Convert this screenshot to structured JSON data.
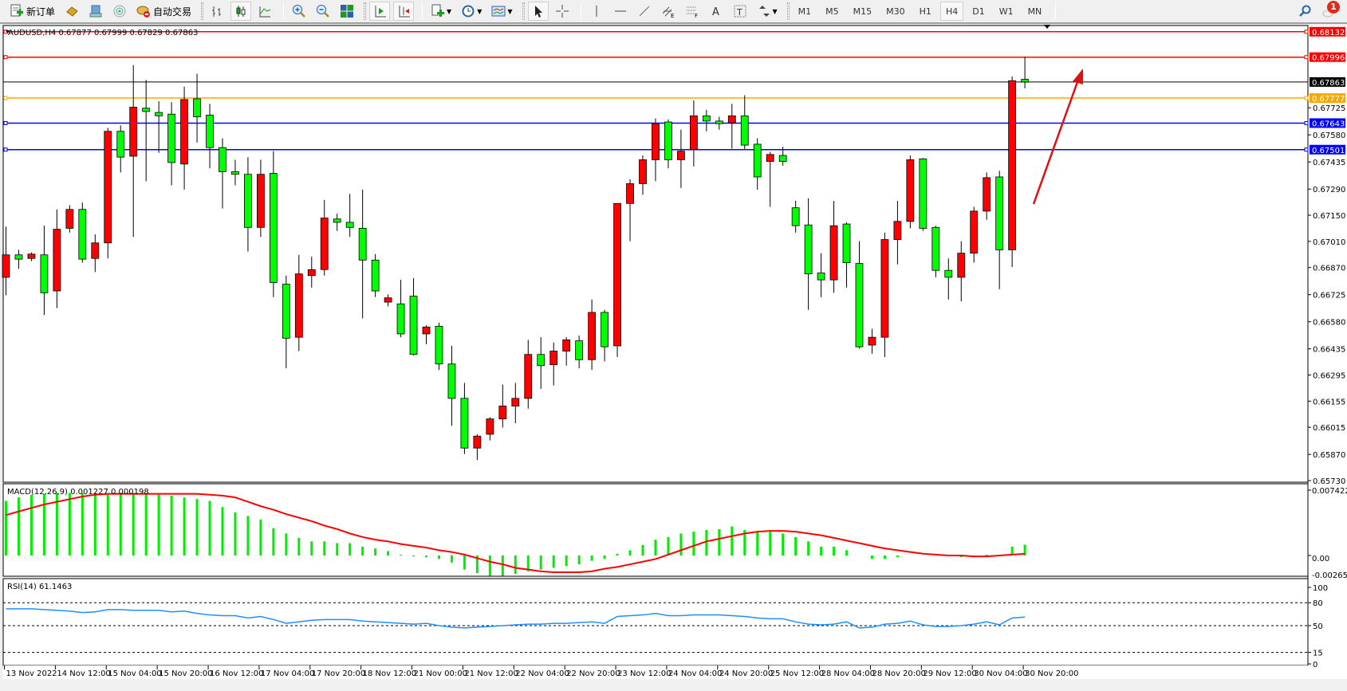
{
  "toolbar": {
    "new_order": "新订单",
    "auto_trading": "自动交易",
    "timeframes": [
      "M1",
      "M5",
      "M15",
      "M30",
      "H1",
      "H4",
      "D1",
      "W1",
      "MN"
    ],
    "active_timeframe": "H4",
    "notification_count": "1",
    "icons": [
      "new-order-icon",
      "market-watch-icon",
      "navigator-icon",
      "signals-icon",
      "auto-trading-icon",
      "bar-chart-icon",
      "candlestick-icon",
      "line-chart-icon",
      "zoom-in-icon",
      "zoom-out-icon",
      "tile-windows-icon",
      "chart-shift-icon",
      "autoscroll-icon",
      "new-chart-icon",
      "periods-icon",
      "templates-icon",
      "cursor-icon",
      "crosshair-icon",
      "vertical-line-icon",
      "horizontal-line-icon",
      "trendline-icon",
      "equidistant-channel-icon",
      "fibonacci-icon",
      "text-icon",
      "text-label-icon",
      "arrows-icon",
      "search-icon",
      "chat-icon"
    ]
  },
  "chart": {
    "title": "AUDUSD,H4  0.67877 0.67999 0.67829 0.67863",
    "colors": {
      "bull": "#ff0000",
      "bear": "#00ff00",
      "hist": "#00ee00",
      "signal": "#ff0000",
      "rsi": "#1e90ff",
      "bg": "#ffffff"
    },
    "price_ticks": [
      "0.67725",
      "0.67580",
      "0.67435",
      "0.67290",
      "0.67150",
      "0.67010",
      "0.66870",
      "0.66725",
      "0.66580",
      "0.66435",
      "0.66295",
      "0.66155",
      "0.66015",
      "0.65870",
      "0.65730"
    ],
    "hlines": [
      {
        "price": 0.68132,
        "label": "0.68132",
        "color": "#ff0000"
      },
      {
        "price": 0.67996,
        "label": "0.67996",
        "color": "#ff0000"
      },
      {
        "price": 0.67863,
        "label": "0.67863",
        "color": "#000000"
      },
      {
        "price": 0.67777,
        "label": "0.67777",
        "color": "#ffa500"
      },
      {
        "price": 0.67643,
        "label": "0.67643",
        "color": "#0000ff"
      },
      {
        "price": 0.67501,
        "label": "0.67501",
        "color": "#0000ff"
      }
    ],
    "ohlc": [
      [
        0.66818,
        0.67089,
        0.66722,
        0.66938
      ],
      [
        0.66938,
        0.66965,
        0.66864,
        0.66915
      ],
      [
        0.66919,
        0.66951,
        0.66905,
        0.66942
      ],
      [
        0.66938,
        0.67094,
        0.66616,
        0.66735
      ],
      [
        0.66745,
        0.67181,
        0.66653,
        0.67075
      ],
      [
        0.6708,
        0.67204,
        0.67057,
        0.67181
      ],
      [
        0.67181,
        0.67218,
        0.66896,
        0.66915
      ],
      [
        0.66919,
        0.67048,
        0.66846,
        0.67002
      ],
      [
        0.67002,
        0.67617,
        0.66919,
        0.67599
      ],
      [
        0.67599,
        0.67631,
        0.67379,
        0.67461
      ],
      [
        0.67466,
        0.67953,
        0.67034,
        0.67728
      ],
      [
        0.67723,
        0.67874,
        0.67332,
        0.67705
      ],
      [
        0.677,
        0.6776,
        0.67484,
        0.67682
      ],
      [
        0.67691,
        0.67755,
        0.6731,
        0.67432
      ],
      [
        0.67424,
        0.67838,
        0.67287,
        0.67769
      ],
      [
        0.67773,
        0.67907,
        0.67539,
        0.67677
      ],
      [
        0.67686,
        0.67746,
        0.67401,
        0.67512
      ],
      [
        0.67512,
        0.67562,
        0.67186,
        0.67383
      ],
      [
        0.67383,
        0.67447,
        0.6731,
        0.67369
      ],
      [
        0.67369,
        0.67461,
        0.66956,
        0.67085
      ],
      [
        0.67085,
        0.67447,
        0.67034,
        0.67369
      ],
      [
        0.67374,
        0.67493,
        0.66712,
        0.6679
      ],
      [
        0.66781,
        0.66827,
        0.66331,
        0.66492
      ],
      [
        0.66497,
        0.66938,
        0.66423,
        0.66836
      ],
      [
        0.66827,
        0.66928,
        0.66763,
        0.66859
      ],
      [
        0.66859,
        0.67231,
        0.66827,
        0.67135
      ],
      [
        0.6713,
        0.67158,
        0.67066,
        0.67112
      ],
      [
        0.67112,
        0.67264,
        0.67034,
        0.67085
      ],
      [
        0.6708,
        0.67287,
        0.66598,
        0.6691
      ],
      [
        0.6691,
        0.66942,
        0.66712,
        0.66745
      ],
      [
        0.66685,
        0.66726,
        0.66662,
        0.66708
      ],
      [
        0.66676,
        0.66804,
        0.66497,
        0.66515
      ],
      [
        0.66717,
        0.66813,
        0.664,
        0.66405
      ],
      [
        0.66515,
        0.66561,
        0.6646,
        0.66552
      ],
      [
        0.66556,
        0.66575,
        0.66322,
        0.66354
      ],
      [
        0.66354,
        0.66451,
        0.66023,
        0.6617
      ],
      [
        0.6617,
        0.66253,
        0.65872,
        0.65904
      ],
      [
        0.65904,
        0.65978,
        0.6584,
        0.65968
      ],
      [
        0.65978,
        0.66069,
        0.65945,
        0.6606
      ],
      [
        0.6606,
        0.66244,
        0.66014,
        0.66129
      ],
      [
        0.66129,
        0.66253,
        0.66037,
        0.6617
      ],
      [
        0.6617,
        0.66483,
        0.66115,
        0.66405
      ],
      [
        0.66405,
        0.66497,
        0.66221,
        0.66345
      ],
      [
        0.6635,
        0.66469,
        0.66239,
        0.66423
      ],
      [
        0.66423,
        0.66497,
        0.66345,
        0.66483
      ],
      [
        0.66478,
        0.66506,
        0.66331,
        0.66377
      ],
      [
        0.66377,
        0.66699,
        0.66322,
        0.6663
      ],
      [
        0.6663,
        0.66644,
        0.66368,
        0.66446
      ],
      [
        0.66451,
        0.67213,
        0.66391,
        0.67213
      ],
      [
        0.67213,
        0.67342,
        0.67011,
        0.67319
      ],
      [
        0.67319,
        0.6747,
        0.67259,
        0.67447
      ],
      [
        0.67447,
        0.67668,
        0.67332,
        0.6764
      ],
      [
        0.67649,
        0.67663,
        0.67401,
        0.67447
      ],
      [
        0.67447,
        0.67608,
        0.67296,
        0.67493
      ],
      [
        0.67502,
        0.67764,
        0.67411,
        0.67682
      ],
      [
        0.67682,
        0.67714,
        0.67599,
        0.67654
      ],
      [
        0.67654,
        0.67677,
        0.67608,
        0.6764
      ],
      [
        0.67645,
        0.67746,
        0.67507,
        0.67682
      ],
      [
        0.67682,
        0.67792,
        0.67502,
        0.67525
      ],
      [
        0.6753,
        0.67562,
        0.67287,
        0.67355
      ],
      [
        0.67438,
        0.67489,
        0.67195,
        0.67475
      ],
      [
        0.6747,
        0.67516,
        0.67415,
        0.67438
      ],
      [
        0.6719,
        0.67227,
        0.67057,
        0.67094
      ],
      [
        0.67098,
        0.67241,
        0.66644,
        0.66836
      ],
      [
        0.66841,
        0.66947,
        0.66712,
        0.66804
      ],
      [
        0.66804,
        0.67227,
        0.66735,
        0.67094
      ],
      [
        0.67103,
        0.67112,
        0.66763,
        0.66896
      ],
      [
        0.66892,
        0.67011,
        0.66437,
        0.66446
      ],
      [
        0.66455,
        0.66542,
        0.66409,
        0.66497
      ],
      [
        0.66497,
        0.67057,
        0.66391,
        0.6702
      ],
      [
        0.6702,
        0.67227,
        0.66887,
        0.67117
      ],
      [
        0.67117,
        0.6747,
        0.6708,
        0.67447
      ],
      [
        0.67452,
        0.67456,
        0.67066,
        0.6708
      ],
      [
        0.67085,
        0.67094,
        0.66818,
        0.66855
      ],
      [
        0.66855,
        0.66919,
        0.66699,
        0.66818
      ],
      [
        0.66818,
        0.67011,
        0.66689,
        0.66947
      ],
      [
        0.66947,
        0.67195,
        0.66896,
        0.67172
      ],
      [
        0.67172,
        0.67379,
        0.67126,
        0.67351
      ],
      [
        0.67355,
        0.67388,
        0.66754,
        0.66965
      ],
      [
        0.66965,
        0.67893,
        0.66873,
        0.6787
      ],
      [
        0.67877,
        0.67999,
        0.67829,
        0.67863
      ]
    ],
    "date_labels": [
      "13 Nov 2022",
      "14 Nov 12:00",
      "15 Nov 04:00",
      "15 Nov 20:00",
      "16 Nov 12:00",
      "17 Nov 04:00",
      "17 Nov 20:00",
      "18 Nov 12:00",
      "21 Nov 00:00",
      "21 Nov 12:00",
      "22 Nov 04:00",
      "22 Nov 20:00",
      "23 Nov 12:00",
      "24 Nov 04:00",
      "24 Nov 20:00",
      "25 Nov 12:00",
      "28 Nov 04:00",
      "28 Nov 20:00",
      "29 Nov 12:00",
      "30 Nov 04:00",
      "30 Nov 20:00"
    ]
  },
  "macd": {
    "label": "MACD(12,26,9) 0.001227 0.000198",
    "ticks": [
      "0.007422",
      "0.00",
      "-0.002651"
    ],
    "histogram": [
      0.0062,
      0.0066,
      0.0069,
      0.007,
      0.0071,
      0.0071,
      0.0071,
      0.0071,
      0.0071,
      0.0071,
      0.007,
      0.007,
      0.0069,
      0.0068,
      0.0066,
      0.0064,
      0.0062,
      0.0055,
      0.0049,
      0.0045,
      0.0041,
      0.0031,
      0.0025,
      0.002,
      0.0016,
      0.0016,
      0.0014,
      0.0014,
      0.001,
      0.0008,
      0.0005,
      0.0001,
      -0.0001,
      -0.0002,
      -0.0004,
      -0.0008,
      -0.0016,
      -0.002,
      -0.0023,
      -0.0023,
      -0.0021,
      -0.0018,
      -0.0016,
      -0.0014,
      -0.0012,
      -0.001,
      -0.0006,
      -0.0004,
      0.0002,
      0.0006,
      0.0012,
      0.0018,
      0.0021,
      0.0025,
      0.0027,
      0.0029,
      0.003,
      0.0033,
      0.0029,
      0.0027,
      0.0027,
      0.0025,
      0.0021,
      0.0016,
      0.001,
      0.001,
      0.0006,
      0.0,
      -0.0004,
      -0.0004,
      -0.0002,
      0.0,
      0.0,
      0.0,
      0.0,
      -0.0002,
      -0.0002,
      0.0001,
      0.0,
      0.001,
      0.001227
    ],
    "signal": [
      0.0046,
      0.005,
      0.0054,
      0.0058,
      0.0061,
      0.0064,
      0.0067,
      0.0069,
      0.007,
      0.007,
      0.007,
      0.007,
      0.007,
      0.007,
      0.007,
      0.007,
      0.0069,
      0.0068,
      0.0066,
      0.0061,
      0.0056,
      0.0052,
      0.0047,
      0.0043,
      0.0039,
      0.0034,
      0.003,
      0.0025,
      0.0021,
      0.0018,
      0.0016,
      0.0013,
      0.0011,
      0.0009,
      0.0006,
      0.0004,
      0.0001,
      -0.0003,
      -0.0007,
      -0.001,
      -0.0014,
      -0.0016,
      -0.0018,
      -0.0019,
      -0.0019,
      -0.0019,
      -0.0018,
      -0.0015,
      -0.0013,
      -0.001,
      -0.0007,
      -0.0004,
      0.0001,
      0.0006,
      0.0011,
      0.0016,
      0.0019,
      0.0022,
      0.0025,
      0.0027,
      0.0028,
      0.0028,
      0.0027,
      0.0025,
      0.0023,
      0.002,
      0.0017,
      0.0014,
      0.0011,
      0.0008,
      0.0006,
      0.0004,
      0.0002,
      0.0001,
      0.0,
      0.0,
      -0.0001,
      -0.0001,
      0.0,
      0.0001,
      0.000198
    ]
  },
  "rsi": {
    "label": "RSI(14) 61.1463",
    "ticks": [
      "100",
      "80",
      "50",
      "15",
      "0"
    ],
    "levels": [
      80,
      50,
      15
    ],
    "values": [
      72,
      72,
      72,
      71,
      70,
      69,
      67,
      68,
      71,
      71,
      70,
      70,
      70,
      68,
      69,
      66,
      64,
      63,
      63,
      60,
      62,
      58,
      53,
      55,
      57,
      58,
      58,
      58,
      56,
      55,
      54,
      53,
      52,
      53,
      50,
      48,
      47,
      48,
      49,
      50,
      51,
      52,
      52,
      53,
      53,
      54,
      55,
      53,
      62,
      63,
      64,
      66,
      63,
      63,
      64,
      64,
      64,
      63,
      62,
      60,
      59,
      59,
      55,
      52,
      51,
      52,
      55,
      47,
      48,
      52,
      53,
      56,
      51,
      49,
      49,
      50,
      52,
      55,
      51,
      60,
      61.1463
    ]
  }
}
